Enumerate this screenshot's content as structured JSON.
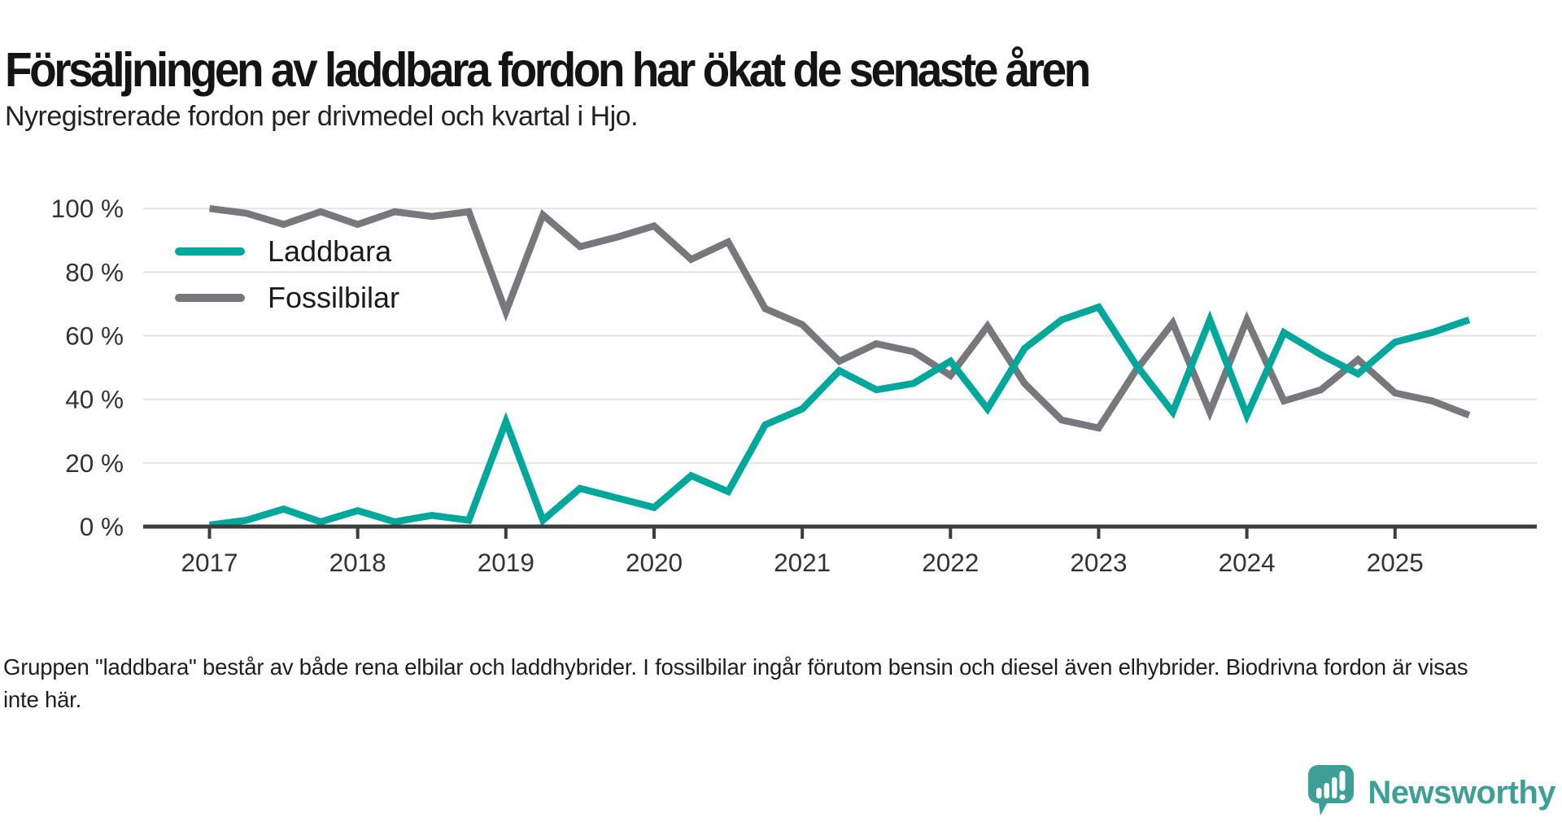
{
  "header": {
    "title": "Försäljningen av laddbara fordon har ökat de senaste åren",
    "subtitle": "Nyregistrerade fordon per drivmedel och kvartal i Hjo."
  },
  "footnote": "Gruppen \"laddbara\" består av både rena elbilar och laddhybrider. I fossilbilar ingår förutom bensin och diesel även elhybrider. Biodrivna fordon är visas inte här.",
  "branding": {
    "logo_text": "Newsworthy",
    "logo_color": "#3d9f96",
    "logo_icon": "speech-bubble-bar-chart-exclamation"
  },
  "colors": {
    "laddbara": "#00a79b",
    "fossilbilar": "#77787b",
    "grid": "#e4e4e4",
    "axis": "#3d3d3d",
    "axis_text": "#333333"
  },
  "chart_data": {
    "type": "line",
    "title": "Försäljningen av laddbara fordon har ökat de senaste åren",
    "subtitle": "Nyregistrerade fordon per drivmedel och kvartal i Hjo.",
    "x": [
      "2017-Q1",
      "2017-Q2",
      "2017-Q3",
      "2017-Q4",
      "2018-Q1",
      "2018-Q2",
      "2018-Q3",
      "2018-Q4",
      "2019-Q1",
      "2019-Q2",
      "2019-Q3",
      "2019-Q4",
      "2020-Q1",
      "2020-Q2",
      "2020-Q3",
      "2020-Q4",
      "2021-Q1",
      "2021-Q2",
      "2021-Q3",
      "2021-Q4",
      "2022-Q1",
      "2022-Q2",
      "2022-Q3",
      "2022-Q4",
      "2023-Q1",
      "2023-Q2",
      "2023-Q3",
      "2023-Q4",
      "2024-Q1",
      "2024-Q2",
      "2024-Q3",
      "2024-Q4",
      "2025-Q1",
      "2025-Q2",
      "2025-Q3"
    ],
    "series": [
      {
        "name": "Laddbara",
        "color": "#00a79b",
        "values": [
          0.5,
          2,
          5.5,
          1.5,
          5,
          1.5,
          3.5,
          2,
          33,
          2,
          12,
          9,
          6,
          16,
          11,
          32,
          37,
          49,
          43,
          45,
          52,
          37,
          56,
          65,
          69,
          51,
          36,
          65,
          35,
          61,
          54,
          48,
          58,
          61,
          65
        ]
      },
      {
        "name": "Fossilbilar",
        "color": "#77787b",
        "values": [
          100,
          98.5,
          95,
          99,
          95,
          99,
          97.5,
          99,
          67.5,
          98,
          88,
          91,
          94.5,
          84,
          89.5,
          68.5,
          63.5,
          52,
          57.5,
          55,
          47.5,
          63,
          45,
          33.5,
          31,
          49,
          64,
          36,
          65,
          39.5,
          43,
          52.5,
          42,
          39.5,
          35
        ]
      }
    ],
    "xticks": [
      "2017",
      "2018",
      "2019",
      "2020",
      "2021",
      "2022",
      "2023",
      "2024",
      "2025"
    ],
    "yticks": [
      0,
      20,
      40,
      60,
      80,
      100
    ],
    "ytick_suffix": " %",
    "ylim": [
      0,
      100
    ],
    "grid": "horizontal",
    "legend_position": "top-left-inside"
  }
}
